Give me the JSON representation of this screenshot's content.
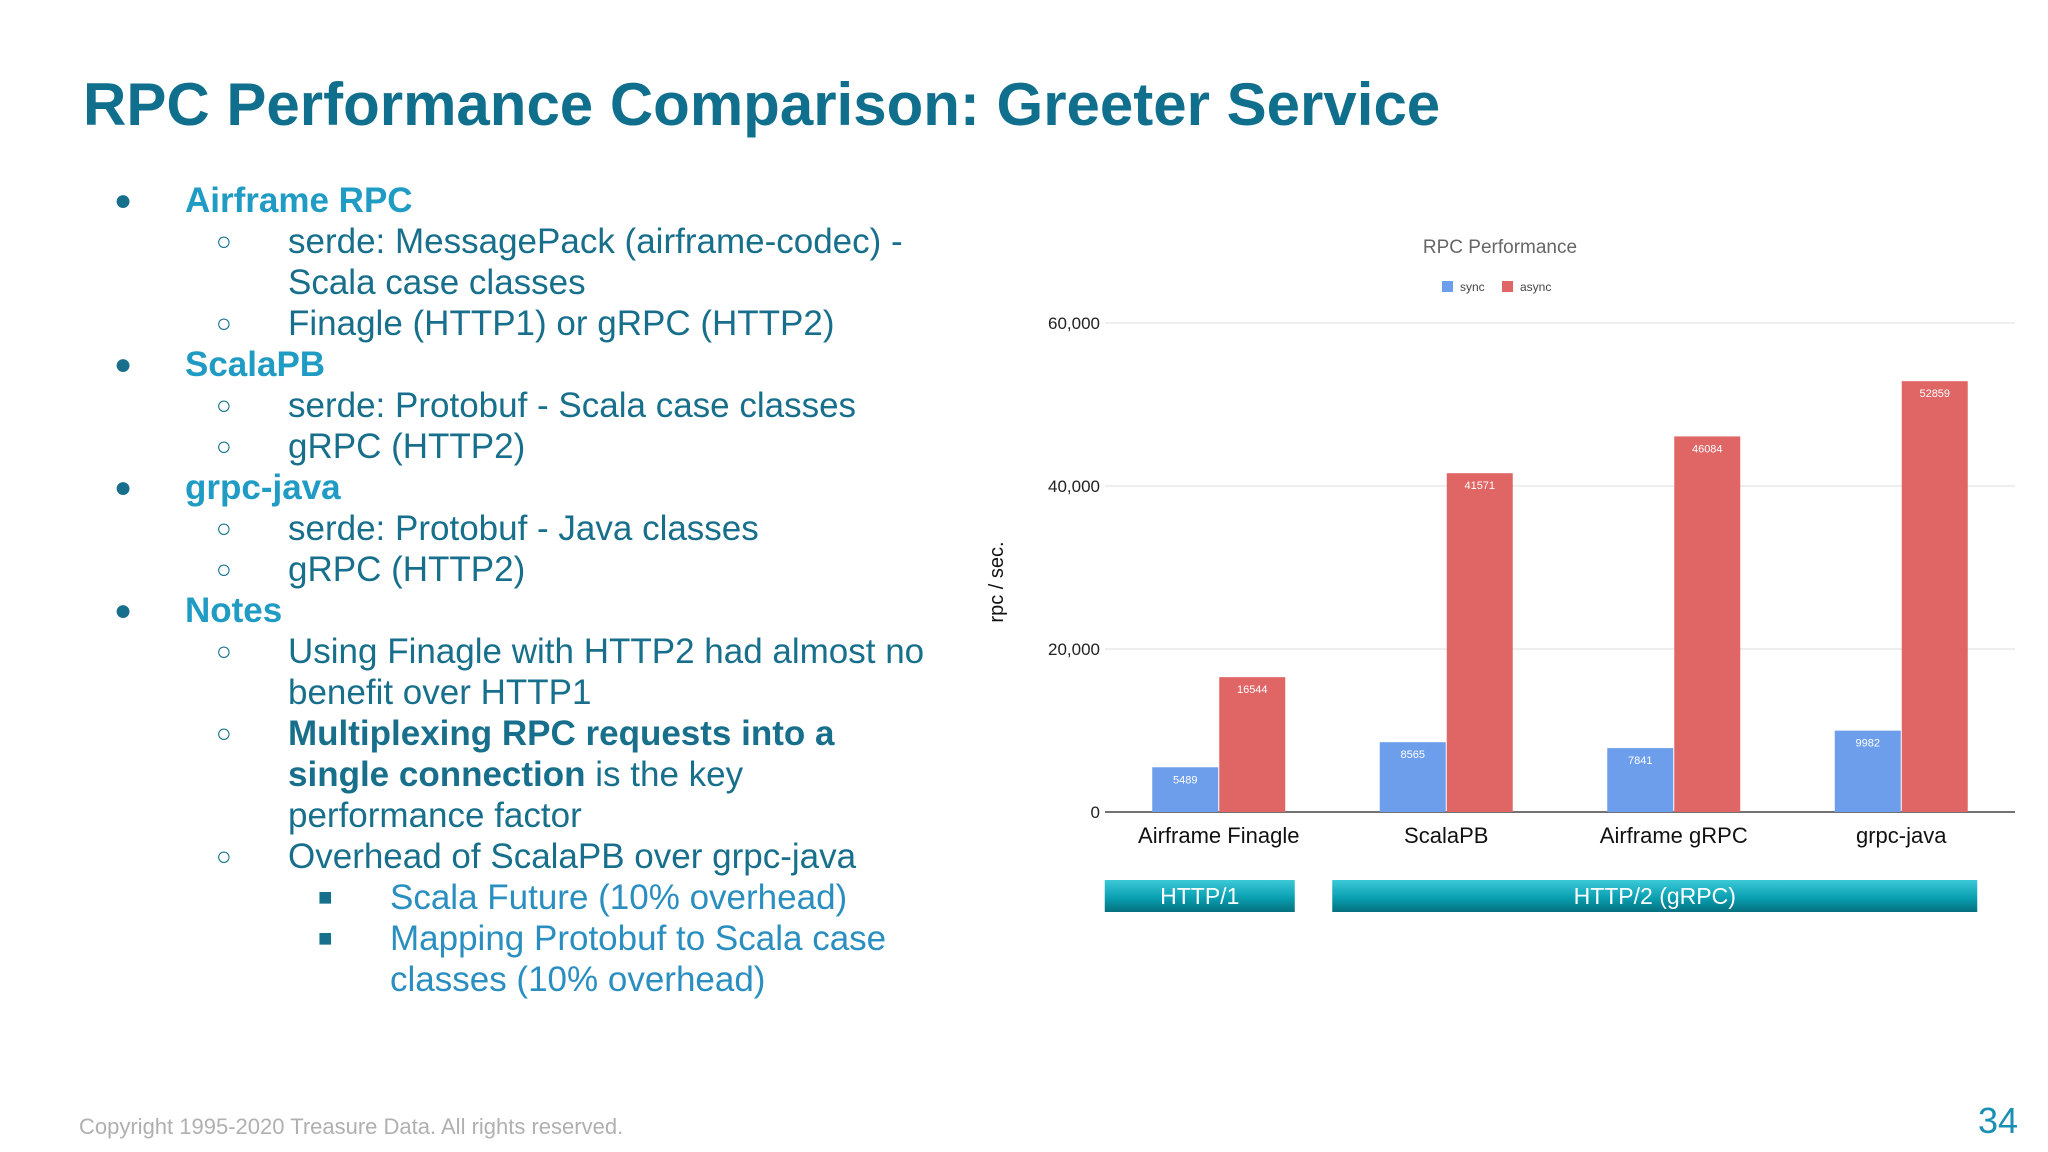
{
  "title": "RPC Performance Comparison: Greeter Service",
  "bullets": {
    "airframe_rpc": "Airframe RPC",
    "airframe_serde_line1": "serde: MessagePack (airframe-codec) -",
    "airframe_serde_line2": "Scala case classes",
    "airframe_transport": "Finagle (HTTP1) or gRPC (HTTP2)",
    "scalapb": "ScalaPB",
    "scalapb_serde": "serde: Protobuf - Scala case classes",
    "scalapb_transport": "gRPC (HTTP2)",
    "grpc_java": "grpc-java",
    "grpc_java_serde": "serde: Protobuf - Java classes",
    "grpc_java_transport": "gRPC (HTTP2)",
    "notes": "Notes",
    "note1_line1": "Using Finagle with HTTP2 had almost no",
    "note1_line2": "benefit over HTTP1",
    "note2_bold_line1": "Multiplexing RPC requests into a",
    "note2_bold_line2": "single connection",
    "note2_rest_line2": " is the key",
    "note2_line3": "performance factor",
    "note3": "Overhead of ScalaPB over grpc-java",
    "note3_sub1": "Scala Future (10% overhead)",
    "note3_sub2_line1": "Mapping Protobuf to Scala case",
    "note3_sub2_line2": "classes (10% overhead)"
  },
  "markers": {
    "level1": "●",
    "level2": "○",
    "level3": "■"
  },
  "chart_data": {
    "type": "bar",
    "title": "RPC Performance",
    "ylabel": "rpc / sec.",
    "xlabel": "",
    "categories": [
      "Airframe Finagle",
      "ScalaPB",
      "Airframe gRPC",
      "grpc-java"
    ],
    "series": [
      {
        "name": "sync",
        "values": [
          5489,
          8565,
          7841,
          9982
        ],
        "color": "#6d9eeb"
      },
      {
        "name": "async",
        "values": [
          16544,
          41571,
          46084,
          52859
        ],
        "color": "#e06666"
      }
    ],
    "ylim": [
      0,
      60000
    ],
    "yticks": [
      0,
      20000,
      40000,
      60000
    ],
    "ytick_labels": [
      "0",
      "20,000",
      "40,000",
      "60,000"
    ],
    "grid": true,
    "legend": "top",
    "data_labels": true,
    "group_labels": [
      {
        "label": "HTTP/1",
        "categories": [
          "Airframe Finagle"
        ]
      },
      {
        "label": "HTTP/2 (gRPC)",
        "categories": [
          "ScalaPB",
          "Airframe gRPC",
          "grpc-java"
        ]
      }
    ]
  },
  "footer": {
    "copyright": "Copyright 1995-2020 Treasure Data. All rights reserved.",
    "page_number": "34"
  }
}
